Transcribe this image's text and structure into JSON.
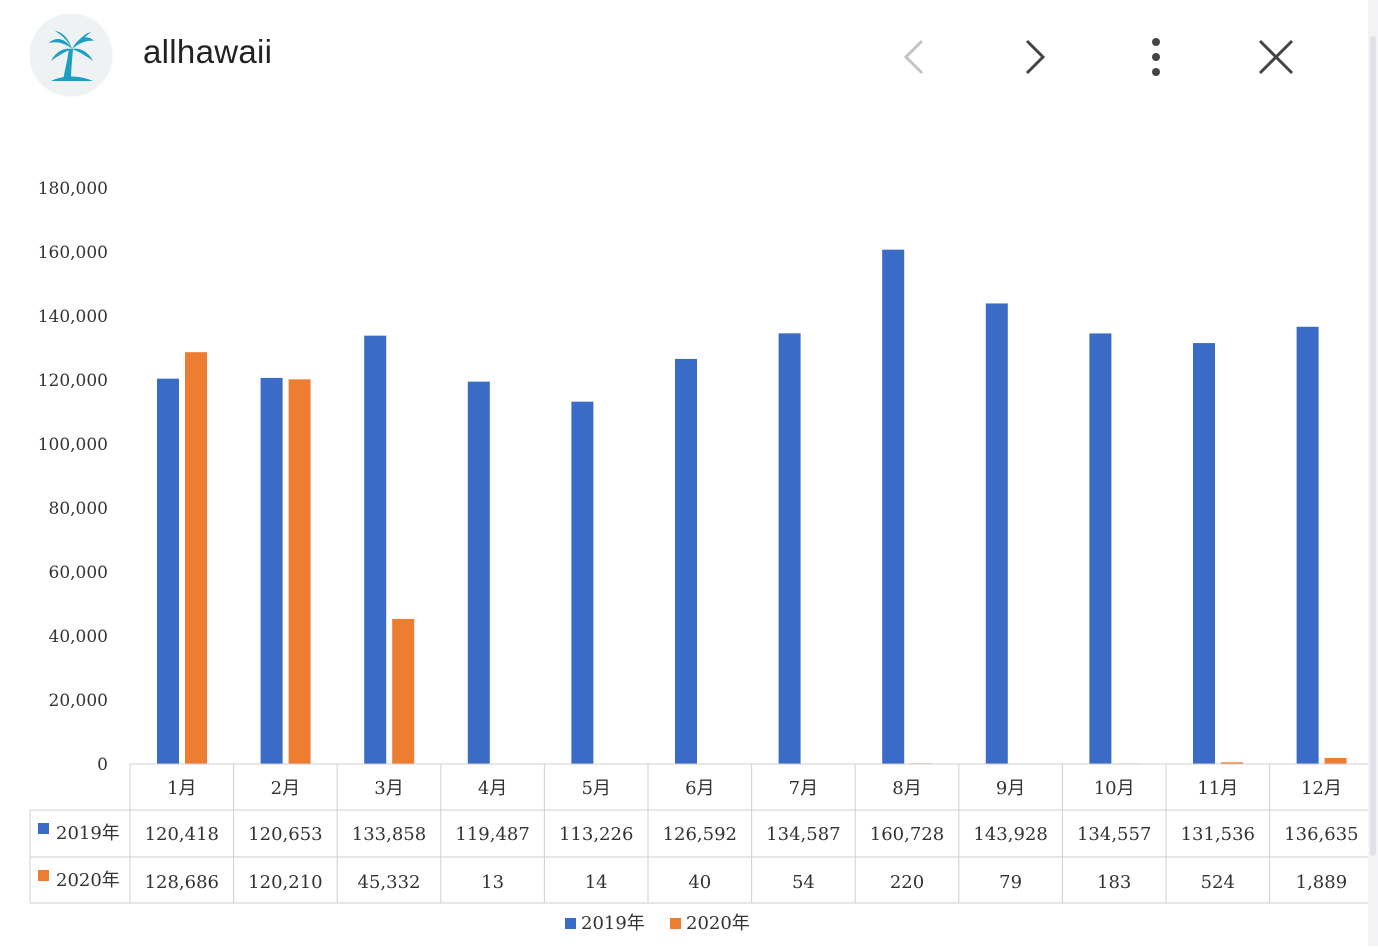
{
  "app": {
    "title": "allhawaii"
  },
  "colors": {
    "series2019": "#3A6BC6",
    "series2020": "#ED7D31",
    "axis_text": "#333333",
    "grid": "#cfcfcf"
  },
  "chart_data": {
    "type": "bar",
    "title": "",
    "xlabel": "",
    "ylabel": "",
    "ylim": [
      0,
      180000
    ],
    "yticks": [
      "180,000",
      "160,000",
      "140,000",
      "120,000",
      "100,000",
      "80,000",
      "60,000",
      "40,000",
      "20,000",
      "0"
    ],
    "categories": [
      "1月",
      "2月",
      "3月",
      "4月",
      "5月",
      "6月",
      "7月",
      "8月",
      "9月",
      "10月",
      "11月",
      "12月"
    ],
    "series": [
      {
        "name": "2019年",
        "values": [
          120418,
          120653,
          133858,
          119487,
          113226,
          126592,
          134587,
          160728,
          143928,
          134557,
          131536,
          136635
        ],
        "labels": [
          "120,418",
          "120,653",
          "133,858",
          "119,487",
          "113,226",
          "126,592",
          "134,587",
          "160,728",
          "143,928",
          "134,557",
          "131,536",
          "136,635"
        ]
      },
      {
        "name": "2020年",
        "values": [
          128686,
          120210,
          45332,
          13,
          14,
          40,
          54,
          220,
          79,
          183,
          524,
          1889
        ],
        "labels": [
          "128,686",
          "120,210",
          "45,332",
          "13",
          "14",
          "40",
          "54",
          "220",
          "79",
          "183",
          "524",
          "1,889"
        ]
      }
    ],
    "legend": "bottom",
    "data_table": true
  }
}
